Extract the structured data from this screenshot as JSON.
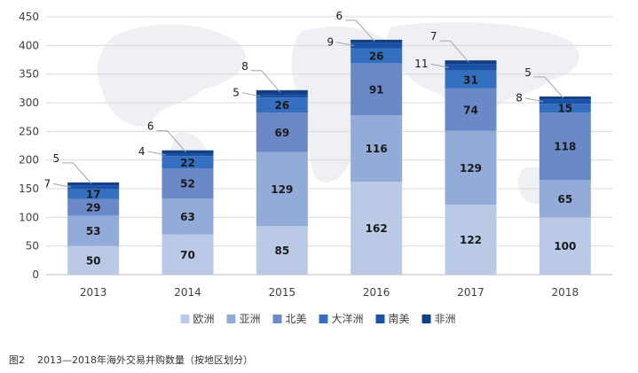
{
  "caption": {
    "figure_number": "图2",
    "text": "2013—2018年海外交易并购数量（按地区划分）"
  },
  "chart_data": {
    "type": "bar",
    "stacked": true,
    "categories": [
      "2013",
      "2014",
      "2015",
      "2016",
      "2017",
      "2018"
    ],
    "series": [
      {
        "name": "欧洲",
        "color": "#b9c9e6",
        "values": [
          50,
          70,
          85,
          162,
          122,
          100
        ]
      },
      {
        "name": "亚洲",
        "color": "#93abd9",
        "values": [
          53,
          63,
          129,
          116,
          129,
          65
        ]
      },
      {
        "name": "北美",
        "color": "#6b89c7",
        "values": [
          29,
          52,
          69,
          91,
          74,
          118
        ]
      },
      {
        "name": "大洋洲",
        "color": "#3570c0",
        "values": [
          17,
          22,
          26,
          26,
          31,
          15
        ]
      },
      {
        "name": "南美",
        "color": "#1a52a8",
        "values": [
          7,
          4,
          5,
          9,
          11,
          8
        ]
      },
      {
        "name": "非洲",
        "color": "#123f86",
        "values": [
          5,
          6,
          8,
          6,
          7,
          5
        ]
      }
    ],
    "ylim": [
      0,
      450
    ],
    "yticks": [
      0,
      50,
      100,
      150,
      200,
      250,
      300,
      350,
      400,
      450
    ],
    "grid": true,
    "legend": "bottom",
    "inside_labels": [
      "欧洲",
      "亚洲",
      "北美",
      "大洋洲"
    ],
    "callout_labels": [
      "南美",
      "非洲"
    ]
  }
}
